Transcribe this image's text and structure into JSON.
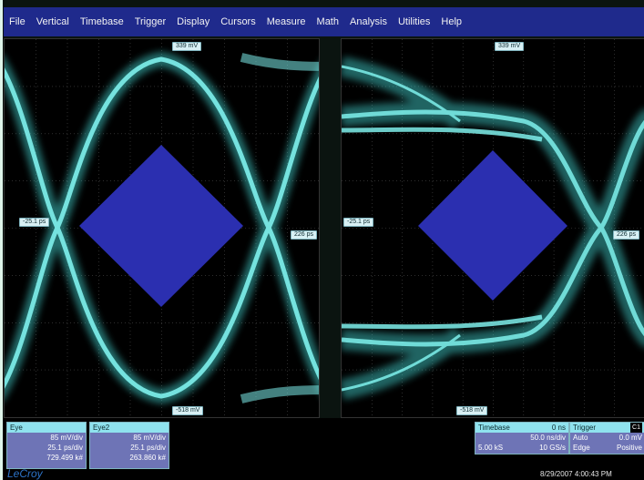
{
  "menu": [
    "File",
    "Vertical",
    "Timebase",
    "Trigger",
    "Display",
    "Cursors",
    "Measure",
    "Math",
    "Analysis",
    "Utilities",
    "Help"
  ],
  "left_panel": {
    "top_marker": "339 mV",
    "bottom_marker": "-518 mV",
    "left_marker": "-25.1 ps",
    "right_marker": "226 ps"
  },
  "right_panel": {
    "top_marker": "339 mV",
    "bottom_marker": "-518 mV",
    "left_marker": "-25.1 ps",
    "right_marker": "226 ps"
  },
  "traces": [
    {
      "name": "Eye",
      "vdiv": "85 mV/div",
      "tdiv": "25.1 ps/div",
      "count": "729.499 k#"
    },
    {
      "name": "Eye2",
      "vdiv": "85 mV/div",
      "tdiv": "25.1 ps/div",
      "count": "263.860 k#"
    }
  ],
  "timebase": {
    "label": "Timebase",
    "offset": "0 ns",
    "tdiv": "50.0 ns/div",
    "samples": "5.00 kS",
    "rate": "10 GS/s"
  },
  "trigger": {
    "label": "Trigger",
    "channel": "C1",
    "mode": "Auto",
    "level": "0.0 mV",
    "type": "Edge",
    "slope": "Positive"
  },
  "brand": "LeCroy",
  "datetime": "8/29/2007 4:00:43 PM",
  "colors": {
    "trace": "#5fe3df",
    "mask": "#2b2fb0",
    "menubar": "#1f2a8c",
    "grid": "#5a5a5a"
  }
}
